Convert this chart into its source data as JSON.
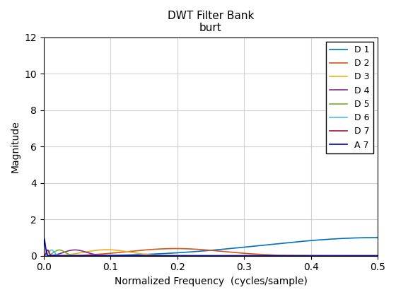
{
  "title_line1": "DWT Filter Bank",
  "title_line2": "burt",
  "xlabel": "Normalized Frequency  (cycles/sample)",
  "ylabel": "Magnitude",
  "xlim": [
    0,
    0.5
  ],
  "ylim": [
    0,
    12
  ],
  "yticks": [
    0,
    2,
    4,
    6,
    8,
    10,
    12
  ],
  "xticks": [
    0,
    0.1,
    0.2,
    0.3,
    0.4,
    0.5
  ],
  "legend_labels": [
    "D 1",
    "D 2",
    "D 3",
    "D 4",
    "D 5",
    "D 6",
    "D 7",
    "A 7"
  ],
  "line_colors": [
    "#0072BD",
    "#D95319",
    "#EDB120",
    "#7E2F8E",
    "#77AC30",
    "#4DBEEE",
    "#A2142F",
    "#0000CD"
  ],
  "background_color": "#FFFFFF",
  "grid": true
}
